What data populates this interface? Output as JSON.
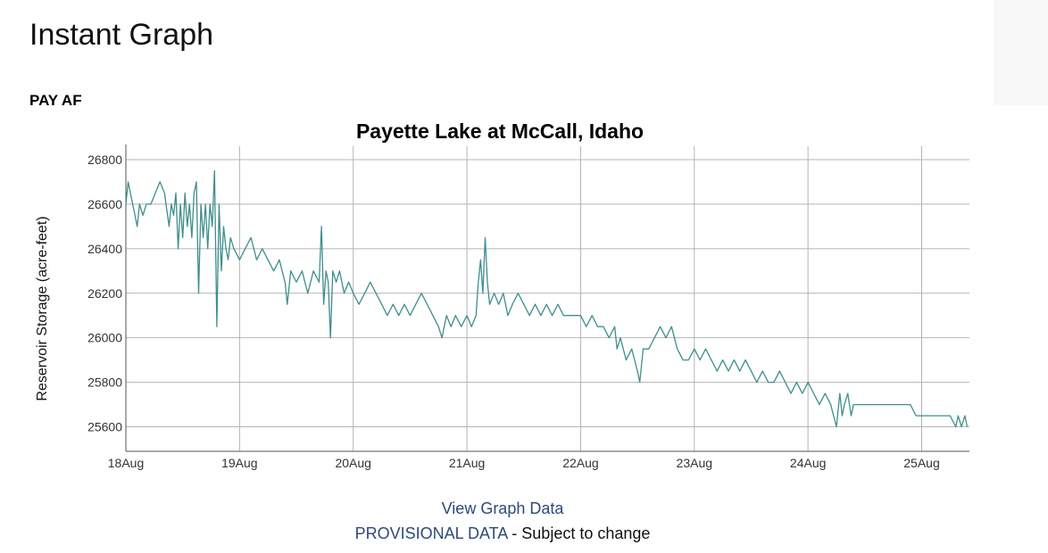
{
  "page": {
    "title": "Instant Graph",
    "station_code": "PAY AF"
  },
  "footer": {
    "view_data": "View Graph Data",
    "provisional_link": "PROVISIONAL DATA",
    "provisional_rest": " - Subject to change"
  },
  "colors": {
    "line": "#3f8e8e",
    "grid": "#b4b4b4",
    "link": "#2e4a7a"
  },
  "chart_data": {
    "type": "line",
    "title": "Payette Lake at McCall, Idaho",
    "xlabel": "",
    "ylabel": "Reservoir Storage (acre-feet)",
    "x_ticks": [
      "18Aug",
      "19Aug",
      "20Aug",
      "21Aug",
      "22Aug",
      "23Aug",
      "24Aug",
      "25Aug"
    ],
    "y_ticks": [
      25600,
      25800,
      26000,
      26200,
      26400,
      26600,
      26800
    ],
    "xlim_days": [
      0,
      7.42
    ],
    "ylim": [
      25490,
      26860
    ],
    "grid": true,
    "legend": "none",
    "series": [
      {
        "points": [
          [
            0.0,
            26600
          ],
          [
            0.02,
            26700
          ],
          [
            0.04,
            26650
          ],
          [
            0.06,
            26600
          ],
          [
            0.08,
            26550
          ],
          [
            0.1,
            26500
          ],
          [
            0.12,
            26600
          ],
          [
            0.15,
            26550
          ],
          [
            0.18,
            26600
          ],
          [
            0.22,
            26600
          ],
          [
            0.26,
            26650
          ],
          [
            0.3,
            26700
          ],
          [
            0.34,
            26650
          ],
          [
            0.38,
            26500
          ],
          [
            0.4,
            26600
          ],
          [
            0.42,
            26550
          ],
          [
            0.44,
            26650
          ],
          [
            0.46,
            26400
          ],
          [
            0.48,
            26600
          ],
          [
            0.5,
            26450
          ],
          [
            0.52,
            26650
          ],
          [
            0.54,
            26500
          ],
          [
            0.56,
            26600
          ],
          [
            0.58,
            26450
          ],
          [
            0.6,
            26650
          ],
          [
            0.62,
            26700
          ],
          [
            0.64,
            26200
          ],
          [
            0.66,
            26600
          ],
          [
            0.68,
            26450
          ],
          [
            0.7,
            26600
          ],
          [
            0.72,
            26400
          ],
          [
            0.74,
            26600
          ],
          [
            0.76,
            26500
          ],
          [
            0.78,
            26750
          ],
          [
            0.8,
            26050
          ],
          [
            0.82,
            26600
          ],
          [
            0.84,
            26300
          ],
          [
            0.86,
            26500
          ],
          [
            0.88,
            26400
          ],
          [
            0.9,
            26350
          ],
          [
            0.92,
            26450
          ],
          [
            0.95,
            26400
          ],
          [
            1.0,
            26350
          ],
          [
            1.05,
            26400
          ],
          [
            1.1,
            26450
          ],
          [
            1.15,
            26350
          ],
          [
            1.2,
            26400
          ],
          [
            1.25,
            26350
          ],
          [
            1.3,
            26300
          ],
          [
            1.35,
            26350
          ],
          [
            1.4,
            26250
          ],
          [
            1.42,
            26150
          ],
          [
            1.45,
            26300
          ],
          [
            1.5,
            26250
          ],
          [
            1.55,
            26300
          ],
          [
            1.6,
            26200
          ],
          [
            1.65,
            26300
          ],
          [
            1.7,
            26250
          ],
          [
            1.72,
            26500
          ],
          [
            1.74,
            26150
          ],
          [
            1.76,
            26300
          ],
          [
            1.78,
            26250
          ],
          [
            1.8,
            26000
          ],
          [
            1.82,
            26300
          ],
          [
            1.85,
            26250
          ],
          [
            1.88,
            26300
          ],
          [
            1.92,
            26200
          ],
          [
            1.96,
            26250
          ],
          [
            2.0,
            26200
          ],
          [
            2.05,
            26150
          ],
          [
            2.1,
            26200
          ],
          [
            2.15,
            26250
          ],
          [
            2.2,
            26200
          ],
          [
            2.25,
            26150
          ],
          [
            2.3,
            26100
          ],
          [
            2.35,
            26150
          ],
          [
            2.4,
            26100
          ],
          [
            2.45,
            26150
          ],
          [
            2.5,
            26100
          ],
          [
            2.55,
            26150
          ],
          [
            2.6,
            26200
          ],
          [
            2.65,
            26150
          ],
          [
            2.7,
            26100
          ],
          [
            2.75,
            26050
          ],
          [
            2.78,
            26000
          ],
          [
            2.82,
            26100
          ],
          [
            2.86,
            26050
          ],
          [
            2.9,
            26100
          ],
          [
            2.95,
            26050
          ],
          [
            3.0,
            26100
          ],
          [
            3.04,
            26050
          ],
          [
            3.08,
            26100
          ],
          [
            3.1,
            26250
          ],
          [
            3.12,
            26350
          ],
          [
            3.14,
            26200
          ],
          [
            3.16,
            26450
          ],
          [
            3.18,
            26250
          ],
          [
            3.2,
            26150
          ],
          [
            3.24,
            26200
          ],
          [
            3.28,
            26150
          ],
          [
            3.32,
            26200
          ],
          [
            3.36,
            26100
          ],
          [
            3.4,
            26150
          ],
          [
            3.45,
            26200
          ],
          [
            3.5,
            26150
          ],
          [
            3.55,
            26100
          ],
          [
            3.6,
            26150
          ],
          [
            3.65,
            26100
          ],
          [
            3.7,
            26150
          ],
          [
            3.75,
            26100
          ],
          [
            3.8,
            26150
          ],
          [
            3.85,
            26100
          ],
          [
            3.9,
            26100
          ],
          [
            3.95,
            26100
          ],
          [
            4.0,
            26100
          ],
          [
            4.05,
            26050
          ],
          [
            4.1,
            26100
          ],
          [
            4.15,
            26050
          ],
          [
            4.2,
            26050
          ],
          [
            4.25,
            26000
          ],
          [
            4.3,
            26050
          ],
          [
            4.32,
            25950
          ],
          [
            4.35,
            26000
          ],
          [
            4.4,
            25900
          ],
          [
            4.45,
            25950
          ],
          [
            4.5,
            25850
          ],
          [
            4.52,
            25800
          ],
          [
            4.55,
            25950
          ],
          [
            4.6,
            25950
          ],
          [
            4.65,
            26000
          ],
          [
            4.7,
            26050
          ],
          [
            4.75,
            26000
          ],
          [
            4.8,
            26050
          ],
          [
            4.85,
            25950
          ],
          [
            4.9,
            25900
          ],
          [
            4.95,
            25900
          ],
          [
            5.0,
            25950
          ],
          [
            5.05,
            25900
          ],
          [
            5.1,
            25950
          ],
          [
            5.15,
            25900
          ],
          [
            5.2,
            25850
          ],
          [
            5.25,
            25900
          ],
          [
            5.3,
            25850
          ],
          [
            5.35,
            25900
          ],
          [
            5.4,
            25850
          ],
          [
            5.45,
            25900
          ],
          [
            5.5,
            25850
          ],
          [
            5.55,
            25800
          ],
          [
            5.6,
            25850
          ],
          [
            5.65,
            25800
          ],
          [
            5.7,
            25800
          ],
          [
            5.75,
            25850
          ],
          [
            5.8,
            25800
          ],
          [
            5.85,
            25750
          ],
          [
            5.9,
            25800
          ],
          [
            5.95,
            25750
          ],
          [
            6.0,
            25800
          ],
          [
            6.05,
            25750
          ],
          [
            6.1,
            25700
          ],
          [
            6.15,
            25750
          ],
          [
            6.2,
            25700
          ],
          [
            6.25,
            25600
          ],
          [
            6.28,
            25750
          ],
          [
            6.3,
            25650
          ],
          [
            6.32,
            25700
          ],
          [
            6.35,
            25750
          ],
          [
            6.38,
            25650
          ],
          [
            6.4,
            25700
          ],
          [
            6.45,
            25700
          ],
          [
            6.5,
            25700
          ],
          [
            6.55,
            25700
          ],
          [
            6.6,
            25700
          ],
          [
            6.65,
            25700
          ],
          [
            6.7,
            25700
          ],
          [
            6.75,
            25700
          ],
          [
            6.8,
            25700
          ],
          [
            6.85,
            25700
          ],
          [
            6.9,
            25700
          ],
          [
            6.95,
            25650
          ],
          [
            7.0,
            25650
          ],
          [
            7.05,
            25650
          ],
          [
            7.1,
            25650
          ],
          [
            7.15,
            25650
          ],
          [
            7.2,
            25650
          ],
          [
            7.25,
            25650
          ],
          [
            7.3,
            25600
          ],
          [
            7.32,
            25650
          ],
          [
            7.35,
            25600
          ],
          [
            7.38,
            25650
          ],
          [
            7.4,
            25600
          ]
        ]
      }
    ]
  }
}
